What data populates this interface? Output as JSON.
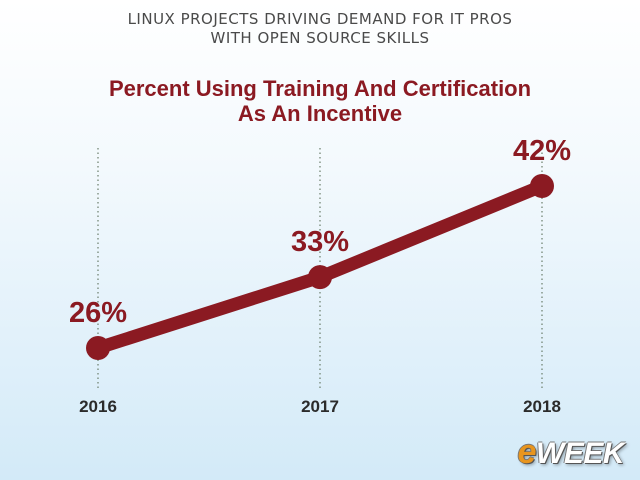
{
  "header": {
    "line1": "LINUX PROJECTS DRIVING DEMAND FOR IT PROS",
    "line2": "WITH OPEN SOURCE SKILLS"
  },
  "chart_data": {
    "type": "line",
    "title_line1": "Percent Using Training And Certification",
    "title_line2": "As An Incentive",
    "categories": [
      "2016",
      "2017",
      "2018"
    ],
    "series": [
      {
        "values": [
          26,
          33,
          42
        ],
        "labels": [
          "26%",
          "33%",
          "42%"
        ]
      }
    ],
    "ylim": [
      20,
      45
    ],
    "grid": "vertical dotted lines at each category",
    "line_color": "#8b1a22",
    "grid_color": "#6a7d6a"
  },
  "watermark": {
    "e": "e",
    "rest": "WEEK"
  }
}
